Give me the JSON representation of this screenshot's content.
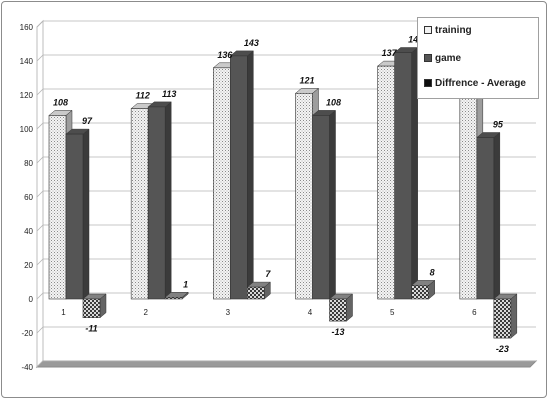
{
  "chart_data": {
    "type": "bar",
    "categories": [
      "1",
      "2",
      "3",
      "4",
      "5",
      "6"
    ],
    "series": [
      {
        "name": "training",
        "values": [
          108,
          112,
          136,
          121,
          137,
          118
        ],
        "color": "#e3e3e3",
        "pattern": "dots"
      },
      {
        "name": "game",
        "values": [
          97,
          113,
          143,
          108,
          145,
          95
        ],
        "color": "#555555",
        "pattern": "solid"
      },
      {
        "name": "Diffrence - Average",
        "values": [
          -11,
          1,
          7,
          -13,
          8,
          -23
        ],
        "color": "#0d0d0d",
        "pattern": "checker"
      }
    ],
    "y_ticks": [
      "160",
      "140",
      "120",
      "100",
      "80",
      "60",
      "40",
      "20",
      "0",
      "-20",
      "-40"
    ],
    "ylim": [
      -40,
      160
    ],
    "grid": true,
    "legend_position": "top-right",
    "title": "",
    "xlabel": "",
    "ylabel": ""
  }
}
